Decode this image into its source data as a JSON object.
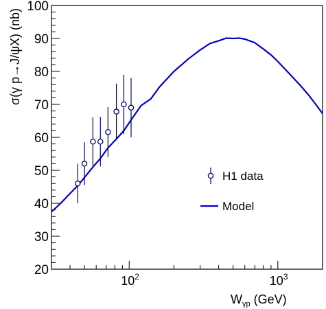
{
  "chart_data": {
    "type": "line",
    "xlabel": "W",
    "xlabel_sub": "γp",
    "xlabel_unit": " (GeV)",
    "ylabel": "σ(γ p→J/ψX) (nb)",
    "x_scale": "log",
    "xlim": [
      30,
      2000
    ],
    "ylim": [
      20,
      100
    ],
    "y_ticks": [
      20,
      30,
      40,
      50,
      60,
      70,
      80,
      90,
      100
    ],
    "x_tick_labels": [
      {
        "base": "10",
        "exp": "2",
        "value": 100
      },
      {
        "base": "10",
        "exp": "3",
        "value": 1000
      }
    ],
    "grid": false,
    "legend_position": "center-right",
    "series": [
      {
        "name": "H1 data",
        "kind": "errorbar",
        "color": "#000080",
        "x": [
          45,
          50,
          57,
          64,
          72,
          82,
          92,
          103
        ],
        "y": [
          46,
          52,
          58.7,
          58.7,
          61.6,
          67.8,
          70,
          69
        ],
        "y_err": [
          6,
          6.5,
          7.4,
          7.5,
          7.6,
          8.5,
          9,
          9
        ]
      },
      {
        "name": "Model",
        "kind": "line",
        "color": "#0000cc",
        "x": [
          30,
          35,
          40,
          45,
          50,
          57,
          64,
          72,
          82,
          92,
          103,
          120,
          140,
          160,
          180,
          200,
          250,
          300,
          350,
          400,
          450,
          500,
          550,
          600,
          700,
          800,
          900,
          1000,
          1200,
          1400,
          1600,
          1800,
          2000
        ],
        "y": [
          37.4,
          40.2,
          43,
          45.3,
          47.8,
          51,
          53.6,
          56.8,
          59.5,
          62,
          65.3,
          69.6,
          71.7,
          75.3,
          77.8,
          80,
          83.8,
          86.5,
          88.5,
          89.3,
          90.1,
          90,
          90.1,
          89.8,
          88.7,
          86.8,
          85,
          83,
          79.2,
          76,
          73,
          70,
          67.2
        ]
      }
    ]
  }
}
